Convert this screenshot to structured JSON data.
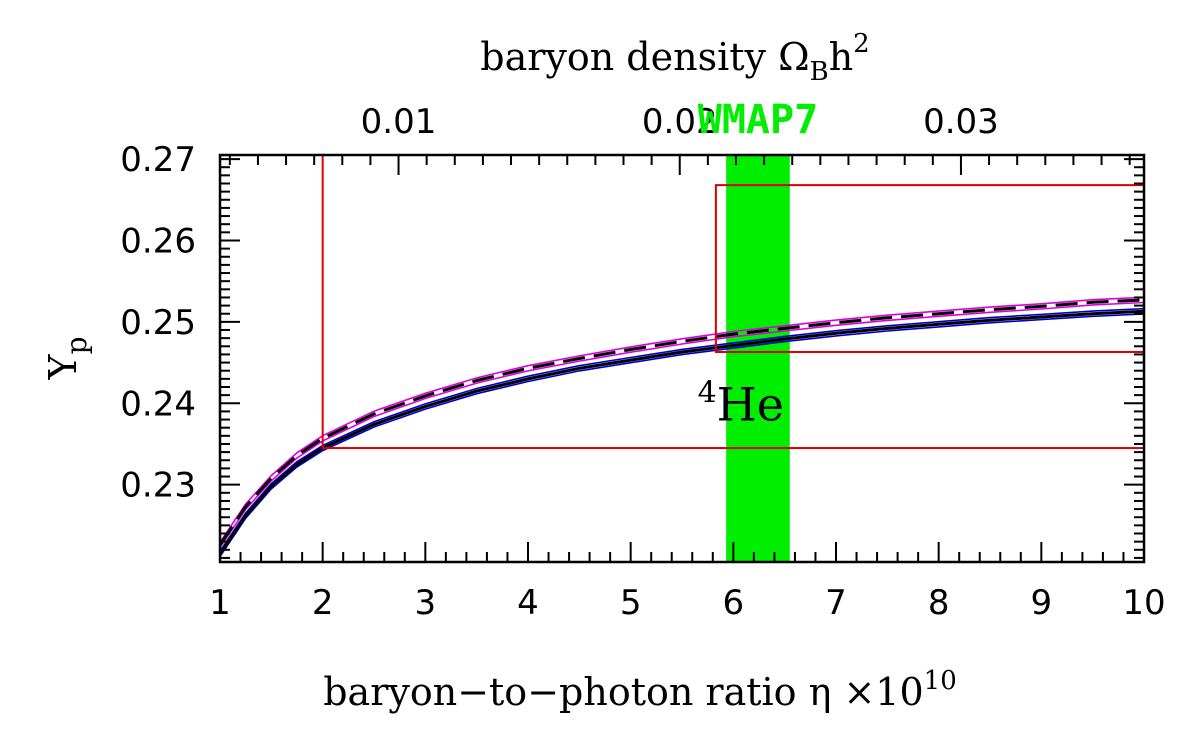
{
  "colors": {
    "frame": "#000000",
    "wmap_band": "#00ee00",
    "constraint_box": "#dd0000",
    "upper_band": "#dd00dd",
    "lower_band": "#0000cc",
    "curve": "#000000"
  },
  "chart_data": {
    "type": "line",
    "xlabel": "baryon−to−photon ratio η ×10",
    "xlabel_sup": "10",
    "ylabel": "Y",
    "ylabel_sub": "p",
    "top_axis_label": "baryon density Ω",
    "top_axis_label_sub": "B",
    "top_axis_label_tail": "h",
    "top_axis_label_sup": "2",
    "xlim": [
      1,
      10
    ],
    "ylim": [
      0.2205,
      0.2705
    ],
    "x_ticks": [
      "1",
      "2",
      "3",
      "4",
      "5",
      "6",
      "7",
      "8",
      "9",
      "10"
    ],
    "y_ticks": [
      "0.23",
      "0.24",
      "0.25",
      "0.26",
      "0.27"
    ],
    "top_ticks": [
      {
        "label": "0.01",
        "omega": 0.01
      },
      {
        "label": "0.02",
        "omega": 0.02
      },
      {
        "label": "0.03",
        "omega": 0.03
      }
    ],
    "annotation_label": "He",
    "annotation_sup": "4",
    "annotation_at": [
      8.8,
      0.2397
    ],
    "wmap": {
      "label": "WMAP7",
      "x_min": 5.93,
      "x_max": 6.55
    },
    "constraint_boxes": [
      {
        "x_min": 2.0,
        "x_max": 10.0,
        "y_min": 0.2345,
        "y_max": 0.2705
      },
      {
        "x_min": 5.83,
        "x_max": 10.0,
        "y_min": 0.2463,
        "y_max": 0.2668
      }
    ],
    "series": [
      {
        "style": "dashed",
        "x": [
          1.0,
          1.25,
          1.5,
          1.75,
          2.0,
          2.5,
          3.0,
          3.5,
          4.0,
          4.5,
          5.0,
          5.5,
          6.0,
          6.5,
          7.0,
          7.5,
          8.0,
          8.5,
          9.0,
          9.5,
          10.0
        ],
        "y": [
          0.2226,
          0.2273,
          0.2308,
          0.2336,
          0.2357,
          0.2387,
          0.2409,
          0.2428,
          0.2443,
          0.2455,
          0.2466,
          0.2476,
          0.2485,
          0.2492,
          0.2499,
          0.2505,
          0.251,
          0.2515,
          0.2519,
          0.2524,
          0.2527
        ]
      },
      {
        "style": "solid",
        "x": [
          1.0,
          1.25,
          1.5,
          1.75,
          2.0,
          2.5,
          3.0,
          3.5,
          4.0,
          4.5,
          5.0,
          5.5,
          6.0,
          6.5,
          7.0,
          7.5,
          8.0,
          8.5,
          9.0,
          9.5,
          10.0
        ],
        "y": [
          0.2215,
          0.2262,
          0.2298,
          0.2325,
          0.2345,
          0.2374,
          0.2396,
          0.2415,
          0.243,
          0.2443,
          0.2453,
          0.2463,
          0.2471,
          0.2479,
          0.2486,
          0.2492,
          0.2497,
          0.2502,
          0.2506,
          0.251,
          0.2513
        ]
      }
    ]
  }
}
